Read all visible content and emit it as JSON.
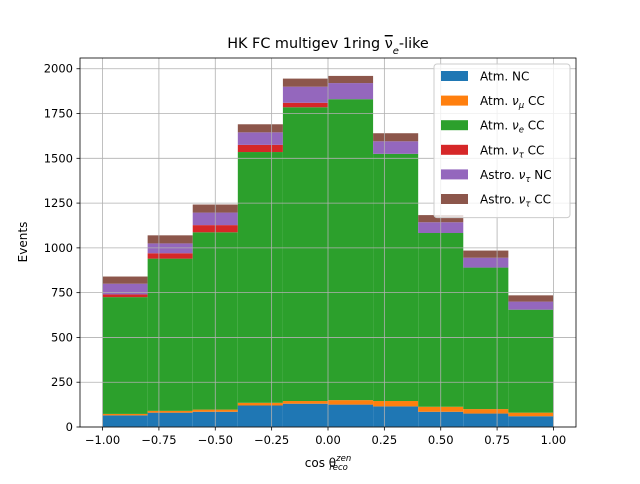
{
  "chart_data": {
    "type": "bar",
    "stacked": true,
    "histogram": true,
    "title_prefix": "HK FC multigev 1ring ",
    "title_nu": "ν",
    "title_sub": "e",
    "title_suffix": "-like",
    "xlabel_main": "cos θ",
    "xlabel_sup": "zen",
    "xlabel_sub": "reco",
    "ylabel": "Events",
    "xlim": [
      -1.1,
      1.1
    ],
    "ylim": [
      0,
      2060
    ],
    "grid": true,
    "legend_position": "top-right",
    "bin_edges": [
      -1.0,
      -0.8,
      -0.6,
      -0.4,
      -0.2,
      0.0,
      0.2,
      0.4,
      0.6,
      0.8,
      1.0
    ],
    "x_ticks": [
      -1.0,
      -0.75,
      -0.5,
      -0.25,
      0.0,
      0.25,
      0.5,
      0.75,
      1.0
    ],
    "x_tick_labels": [
      "−1.00",
      "−0.75",
      "−0.50",
      "−0.25",
      "0.00",
      "0.25",
      "0.50",
      "0.75",
      "1.00"
    ],
    "y_ticks": [
      0,
      250,
      500,
      750,
      1000,
      1250,
      1500,
      1750,
      2000
    ],
    "y_tick_labels": [
      "0",
      "250",
      "500",
      "750",
      "1000",
      "1250",
      "1500",
      "1750",
      "2000"
    ],
    "series": [
      {
        "name_main": "Atm. NC",
        "nu_sub": "",
        "color": "#1f77b4",
        "values": [
          65,
          80,
          85,
          120,
          130,
          125,
          115,
          85,
          75,
          60
        ]
      },
      {
        "name_main": "Atm. ",
        "nu_sub": "μ",
        "name_post": " CC",
        "color": "#ff7f0e",
        "values": [
          8,
          10,
          12,
          15,
          15,
          25,
          30,
          28,
          25,
          20
        ]
      },
      {
        "name_main": "Atm. ",
        "nu_sub": "e",
        "name_post": " CC",
        "color": "#2ca02c",
        "values": [
          652,
          850,
          990,
          1400,
          1640,
          1680,
          1380,
          970,
          790,
          575
        ]
      },
      {
        "name_main": "Atm. ",
        "nu_sub": "τ",
        "name_post": " CC",
        "color": "#d62728",
        "values": [
          15,
          30,
          40,
          40,
          25,
          0,
          0,
          0,
          0,
          0
        ]
      },
      {
        "name_main": "Astro. ",
        "nu_sub": "τ",
        "name_post": " NC",
        "color": "#9467bd",
        "values": [
          60,
          55,
          70,
          70,
          90,
          90,
          70,
          60,
          55,
          45
        ]
      },
      {
        "name_main": "Astro. ",
        "nu_sub": "τ",
        "name_post": " CC",
        "color": "#8c564b",
        "values": [
          40,
          45,
          45,
          45,
          45,
          40,
          45,
          40,
          40,
          35
        ]
      }
    ]
  }
}
